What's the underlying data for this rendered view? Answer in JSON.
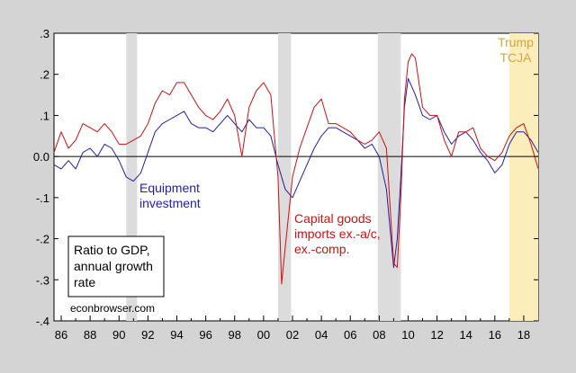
{
  "chart_data": {
    "type": "line",
    "x_ticks": [
      "86",
      "88",
      "90",
      "92",
      "94",
      "96",
      "98",
      "00",
      "02",
      "04",
      "06",
      "08",
      "10",
      "12",
      "14",
      "16",
      "18"
    ],
    "y_ticks": [
      ".3",
      ".2",
      ".1",
      "0.0",
      "-.1",
      "-.2",
      "-.3",
      "-.4"
    ],
    "y_tick_values": [
      0.3,
      0.2,
      0.1,
      0.0,
      -0.1,
      -0.2,
      -0.3,
      -0.4
    ],
    "xlim": [
      1985.5,
      2019.0
    ],
    "ylim": [
      -0.4,
      0.3
    ],
    "recessions": [
      [
        1990.5,
        1991.25
      ],
      [
        2001.0,
        2001.9
      ],
      [
        2007.9,
        2009.5
      ]
    ],
    "trump_period": [
      2017.0,
      2019.0
    ],
    "colors": {
      "equipment": "#1f1fa6",
      "capital_goods": "#d01010",
      "recession": "#dcdcdc",
      "trump": "#fbeebb",
      "trump_text": "#d9a441"
    },
    "series": [
      {
        "key": "equipment",
        "x": [
          1985.5,
          1986.0,
          1986.5,
          1987.0,
          1987.5,
          1988.0,
          1988.5,
          1989.0,
          1989.5,
          1990.0,
          1990.5,
          1991.0,
          1991.5,
          1992.0,
          1992.5,
          1993.0,
          1993.5,
          1994.0,
          1994.5,
          1995.0,
          1995.5,
          1996.0,
          1996.5,
          1997.0,
          1997.5,
          1998.0,
          1998.5,
          1999.0,
          1999.5,
          2000.0,
          2000.5,
          2001.0,
          2001.5,
          2002.0,
          2002.5,
          2003.0,
          2003.5,
          2004.0,
          2004.5,
          2005.0,
          2005.5,
          2006.0,
          2006.5,
          2007.0,
          2007.5,
          2008.0,
          2008.5,
          2009.0,
          2009.25,
          2009.5,
          2009.75,
          2010.0,
          2010.5,
          2011.0,
          2011.5,
          2012.0,
          2012.5,
          2013.0,
          2013.5,
          2014.0,
          2014.5,
          2015.0,
          2015.5,
          2016.0,
          2016.5,
          2017.0,
          2017.5,
          2018.0,
          2018.5,
          2019.0
        ],
        "y": [
          -0.02,
          -0.03,
          -0.01,
          -0.03,
          0.01,
          0.02,
          0.0,
          0.03,
          0.02,
          -0.01,
          -0.05,
          -0.06,
          -0.04,
          0.01,
          0.06,
          0.08,
          0.09,
          0.1,
          0.11,
          0.08,
          0.07,
          0.07,
          0.06,
          0.08,
          0.1,
          0.08,
          0.06,
          0.09,
          0.07,
          0.07,
          0.05,
          -0.02,
          -0.08,
          -0.1,
          -0.06,
          -0.02,
          0.02,
          0.05,
          0.07,
          0.07,
          0.06,
          0.05,
          0.04,
          0.02,
          0.03,
          0.0,
          -0.08,
          -0.27,
          -0.2,
          -0.05,
          0.12,
          0.19,
          0.15,
          0.1,
          0.09,
          0.1,
          0.06,
          0.03,
          0.05,
          0.06,
          0.04,
          0.01,
          -0.01,
          -0.04,
          -0.02,
          0.03,
          0.06,
          0.06,
          0.04,
          0.01
        ]
      },
      {
        "key": "capital_goods",
        "x": [
          1985.5,
          1986.0,
          1986.5,
          1987.0,
          1987.5,
          1988.0,
          1988.5,
          1989.0,
          1989.5,
          1990.0,
          1990.5,
          1991.0,
          1991.5,
          1992.0,
          1992.5,
          1993.0,
          1993.5,
          1994.0,
          1994.5,
          1995.0,
          1995.5,
          1996.0,
          1996.5,
          1997.0,
          1997.5,
          1998.0,
          1998.5,
          1999.0,
          1999.5,
          2000.0,
          2000.5,
          2001.0,
          2001.25,
          2001.5,
          2002.0,
          2002.5,
          2003.0,
          2003.5,
          2004.0,
          2004.5,
          2005.0,
          2005.5,
          2006.0,
          2006.5,
          2007.0,
          2007.5,
          2008.0,
          2008.5,
          2009.0,
          2009.25,
          2009.5,
          2009.75,
          2010.0,
          2010.25,
          2010.5,
          2011.0,
          2011.5,
          2012.0,
          2012.5,
          2013.0,
          2013.5,
          2014.0,
          2014.5,
          2015.0,
          2015.5,
          2016.0,
          2016.5,
          2017.0,
          2017.5,
          2018.0,
          2018.5,
          2019.0
        ],
        "y": [
          0.01,
          0.06,
          0.02,
          0.04,
          0.08,
          0.07,
          0.06,
          0.08,
          0.06,
          0.03,
          0.03,
          0.04,
          0.05,
          0.08,
          0.13,
          0.16,
          0.15,
          0.18,
          0.18,
          0.15,
          0.12,
          0.1,
          0.09,
          0.11,
          0.14,
          0.1,
          0.0,
          0.12,
          0.16,
          0.18,
          0.15,
          -0.05,
          -0.31,
          -0.22,
          -0.05,
          0.02,
          0.07,
          0.12,
          0.14,
          0.08,
          0.08,
          0.07,
          0.06,
          0.04,
          0.03,
          0.04,
          0.06,
          0.02,
          -0.26,
          -0.27,
          -0.1,
          0.14,
          0.23,
          0.25,
          0.24,
          0.12,
          0.1,
          0.1,
          0.04,
          0.0,
          0.06,
          0.06,
          0.07,
          0.02,
          0.0,
          -0.01,
          0.01,
          0.05,
          0.07,
          0.08,
          0.03,
          -0.03
        ]
      }
    ],
    "labels": {
      "equipment": [
        "Equipment",
        "investment"
      ],
      "capital_goods": [
        "Capital goods",
        "imports ex.-a/c,",
        "ex.-comp."
      ],
      "legend_box": [
        "Ratio to GDP,",
        "annual growth",
        "rate"
      ],
      "trump": [
        "Trump",
        "TCJA"
      ],
      "source": "econbrowser.com"
    }
  }
}
